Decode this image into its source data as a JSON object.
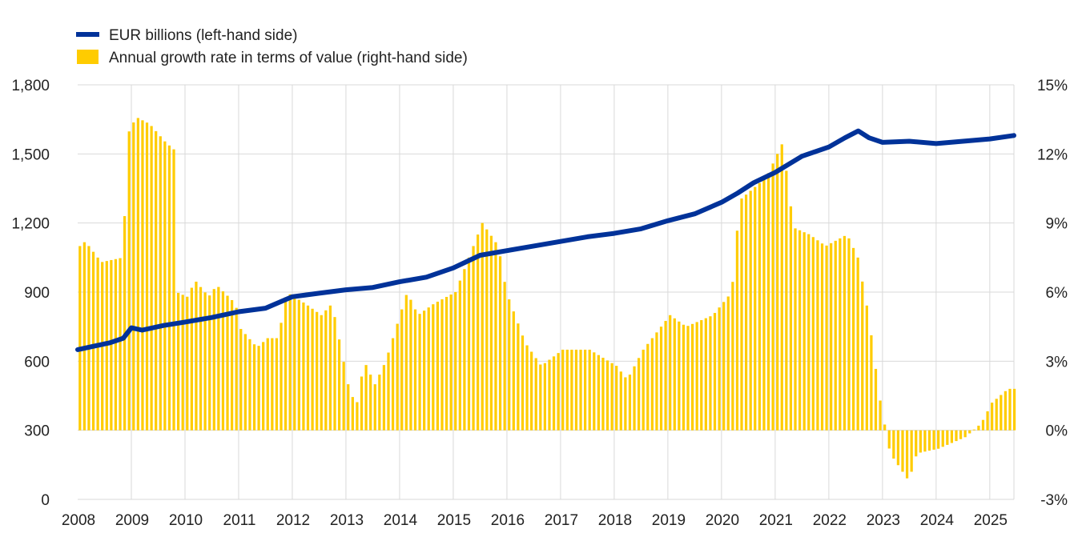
{
  "chart_data": {
    "type": "bar+line",
    "title": "",
    "colors": {
      "line": "#003299",
      "bars": "#ffcc00",
      "grid": "#d9d9d9"
    },
    "legend": {
      "position": "top-left",
      "line_label": "EUR billions (left-hand side)",
      "bar_label": "Annual growth rate in terms of value (right-hand side)"
    },
    "left_axis": {
      "ylim": [
        0,
        1800
      ],
      "ticks": [
        0,
        300,
        600,
        900,
        1200,
        1500,
        1800
      ],
      "tick_labels": [
        "0",
        "300",
        "600",
        "900",
        "1,200",
        "1,500",
        "1,800"
      ]
    },
    "right_axis": {
      "ylim": [
        -3,
        15
      ],
      "ticks": [
        -3,
        0,
        3,
        6,
        9,
        12,
        15
      ],
      "tick_labels": [
        "-3%",
        "0%",
        "3%",
        "6%",
        "9%",
        "12%",
        "15%"
      ]
    },
    "x_axis": {
      "start": 2008,
      "end": 2025.45,
      "years": [
        "2008",
        "2009",
        "2010",
        "2011",
        "2012",
        "2013",
        "2014",
        "2015",
        "2016",
        "2017",
        "2018",
        "2019",
        "2020",
        "2021",
        "2022",
        "2023",
        "2024",
        "2025"
      ]
    },
    "series": [
      {
        "name": "EUR billions (left-hand side)",
        "axis": "left",
        "type": "line",
        "points": [
          [
            2008.0,
            650
          ],
          [
            2008.3,
            665
          ],
          [
            2008.6,
            680
          ],
          [
            2008.85,
            700
          ],
          [
            2009.0,
            745
          ],
          [
            2009.2,
            735
          ],
          [
            2009.6,
            755
          ],
          [
            2010.0,
            770
          ],
          [
            2010.5,
            790
          ],
          [
            2011.0,
            815
          ],
          [
            2011.5,
            830
          ],
          [
            2012.0,
            880
          ],
          [
            2012.5,
            895
          ],
          [
            2013.0,
            910
          ],
          [
            2013.5,
            920
          ],
          [
            2014.0,
            945
          ],
          [
            2014.5,
            965
          ],
          [
            2015.0,
            1005
          ],
          [
            2015.5,
            1060
          ],
          [
            2016.0,
            1080
          ],
          [
            2016.5,
            1100
          ],
          [
            2017.0,
            1120
          ],
          [
            2017.5,
            1140
          ],
          [
            2018.0,
            1155
          ],
          [
            2018.5,
            1175
          ],
          [
            2019.0,
            1210
          ],
          [
            2019.5,
            1240
          ],
          [
            2020.0,
            1290
          ],
          [
            2020.3,
            1330
          ],
          [
            2020.6,
            1375
          ],
          [
            2021.0,
            1420
          ],
          [
            2021.5,
            1490
          ],
          [
            2022.0,
            1530
          ],
          [
            2022.3,
            1570
          ],
          [
            2022.55,
            1600
          ],
          [
            2022.75,
            1570
          ],
          [
            2023.0,
            1550
          ],
          [
            2023.5,
            1555
          ],
          [
            2024.0,
            1545
          ],
          [
            2024.5,
            1555
          ],
          [
            2025.0,
            1565
          ],
          [
            2025.45,
            1580
          ]
        ]
      },
      {
        "name": "Annual growth rate in terms of value (right-hand side)",
        "axis": "right",
        "type": "bar",
        "monthly": true,
        "start": 2008.0,
        "knots": [
          [
            2008.0,
            8.0
          ],
          [
            2008.1,
            8.2
          ],
          [
            2008.4,
            7.3
          ],
          [
            2008.8,
            7.5
          ],
          [
            2008.9,
            12.9
          ],
          [
            2009.05,
            13.6
          ],
          [
            2009.3,
            13.3
          ],
          [
            2009.6,
            12.5
          ],
          [
            2009.75,
            12.2
          ],
          [
            2009.8,
            6.0
          ],
          [
            2010.0,
            5.8
          ],
          [
            2010.15,
            6.5
          ],
          [
            2010.4,
            5.8
          ],
          [
            2010.55,
            6.3
          ],
          [
            2010.9,
            5.5
          ],
          [
            2011.0,
            4.4
          ],
          [
            2011.3,
            3.6
          ],
          [
            2011.5,
            4.0
          ],
          [
            2011.7,
            4.0
          ],
          [
            2011.85,
            6.0
          ],
          [
            2012.2,
            5.5
          ],
          [
            2012.5,
            5.0
          ],
          [
            2012.7,
            5.5
          ],
          [
            2013.0,
            2.0
          ],
          [
            2013.15,
            1.0
          ],
          [
            2013.3,
            3.0
          ],
          [
            2013.5,
            2.0
          ],
          [
            2013.7,
            3.0
          ],
          [
            2014.1,
            6.0
          ],
          [
            2014.3,
            5.0
          ],
          [
            2014.6,
            5.5
          ],
          [
            2015.0,
            6.0
          ],
          [
            2015.5,
            9.0
          ],
          [
            2015.8,
            8.0
          ],
          [
            2015.95,
            6.0
          ],
          [
            2016.3,
            3.8
          ],
          [
            2016.6,
            2.8
          ],
          [
            2017.0,
            3.5
          ],
          [
            2017.5,
            3.5
          ],
          [
            2018.0,
            2.8
          ],
          [
            2018.2,
            2.2
          ],
          [
            2018.5,
            3.5
          ],
          [
            2019.0,
            5.0
          ],
          [
            2019.3,
            4.5
          ],
          [
            2019.8,
            5.0
          ],
          [
            2020.15,
            6.0
          ],
          [
            2020.3,
            10.0
          ],
          [
            2020.8,
            11.0
          ],
          [
            2021.1,
            12.5
          ],
          [
            2021.3,
            8.8
          ],
          [
            2021.6,
            8.5
          ],
          [
            2021.9,
            8.0
          ],
          [
            2022.3,
            8.5
          ],
          [
            2022.5,
            7.5
          ],
          [
            2022.7,
            5.0
          ],
          [
            2022.9,
            1.5
          ],
          [
            2023.1,
            -1.0
          ],
          [
            2023.45,
            -2.2
          ],
          [
            2023.6,
            -1.0
          ],
          [
            2024.0,
            -0.8
          ],
          [
            2024.5,
            -0.3
          ],
          [
            2024.8,
            0.3
          ],
          [
            2025.0,
            1.2
          ],
          [
            2025.3,
            1.8
          ],
          [
            2025.45,
            1.8
          ]
        ]
      }
    ]
  }
}
